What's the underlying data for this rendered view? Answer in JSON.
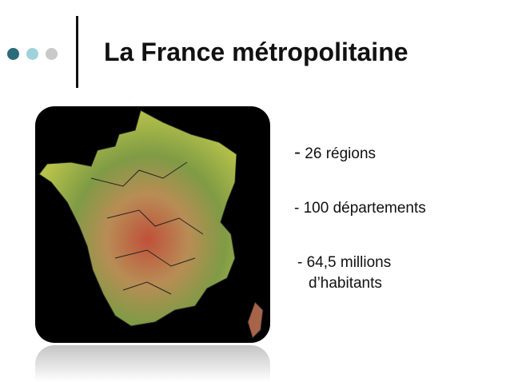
{
  "slide": {
    "title": "La France métropolitaine",
    "accent_colors": [
      "#2b6c78",
      "#9fd2da",
      "#c9c9c9"
    ],
    "map": {
      "icon": "france-relief-map-image"
    },
    "bullets": [
      {
        "dash": "-",
        "text": " 26 régions"
      },
      {
        "dash": "-",
        "text": " 100 départements"
      },
      {
        "dash": "-",
        "line1": " 64,5 millions",
        "line2": "d’habitants"
      }
    ]
  }
}
